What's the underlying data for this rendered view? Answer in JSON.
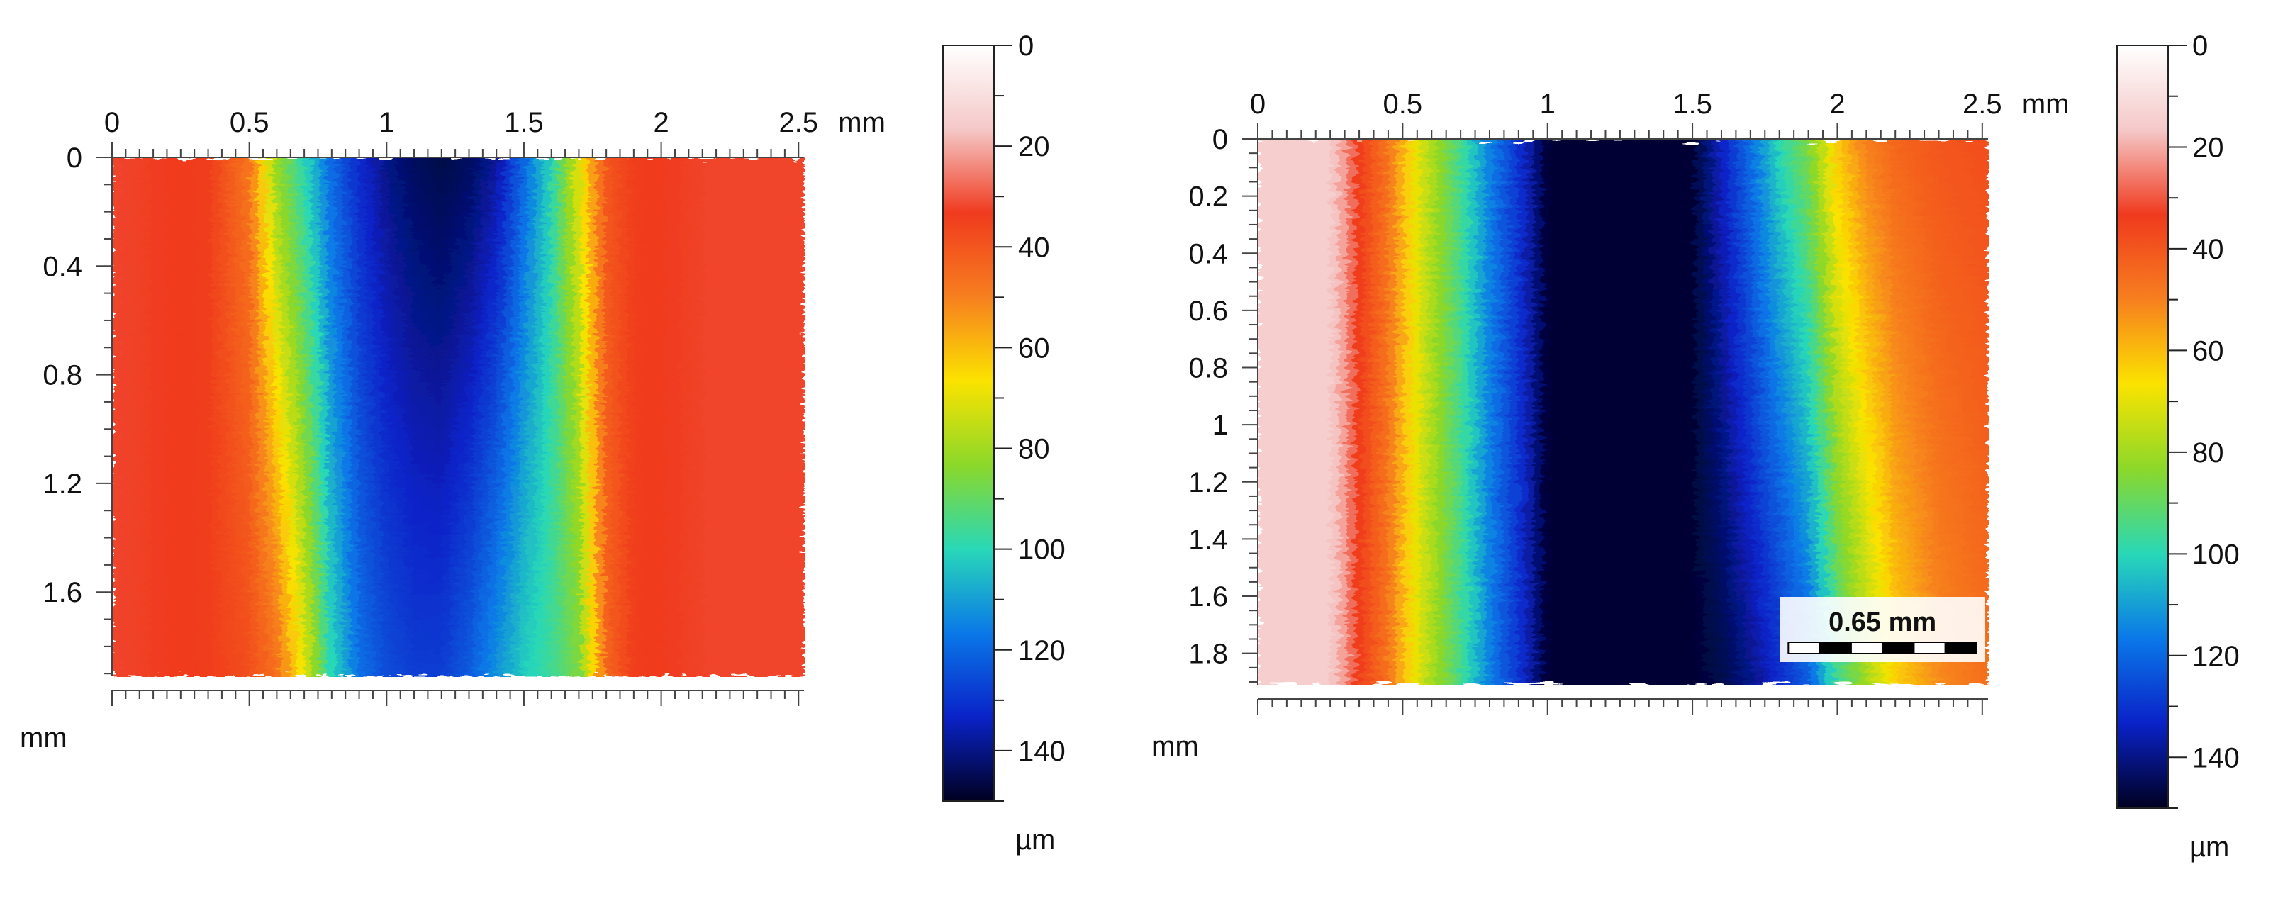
{
  "chart_data": [
    {
      "type": "heatmap",
      "title": "",
      "x_ticks": [
        0,
        0.5,
        1,
        1.5,
        2,
        2.5
      ],
      "x_tick_labels": [
        "0",
        "0.5",
        "1",
        "1.5",
        "2",
        "2.5"
      ],
      "x_unit": "mm",
      "x_range": [
        0,
        2.52
      ],
      "y_ticks": [
        0,
        0.4,
        0.8,
        1.2,
        1.6
      ],
      "y_tick_labels": [
        "0",
        "0.4",
        "0.8",
        "1.2",
        "1.6"
      ],
      "y_unit": "mm",
      "y_range": [
        0,
        1.91
      ],
      "colorbar": {
        "ticks": [
          0,
          20,
          40,
          60,
          80,
          100,
          120,
          140
        ],
        "tick_labels": [
          "0",
          "20",
          "40",
          "60",
          "80",
          "100",
          "120",
          "140"
        ],
        "range": [
          0,
          150
        ],
        "unit": "µm",
        "colormap": [
          "#ffffff",
          "#f5c8c8",
          "#f03a1e",
          "#f77f1f",
          "#fbe300",
          "#8bd82a",
          "#28d8b8",
          "#0a78e8",
          "#0a22c8",
          "#000020"
        ]
      },
      "depth_profile": {
        "x": [
          0,
          0.35,
          0.5,
          0.6,
          0.7,
          0.8,
          0.9,
          1.0,
          1.1,
          1.2,
          1.3,
          1.4,
          1.5,
          1.6,
          1.7,
          1.8,
          1.9,
          2.2,
          2.52
        ],
        "depth_top": [
          32,
          34,
          48,
          82,
          100,
          120,
          132,
          140,
          144,
          146,
          144,
          138,
          120,
          100,
          70,
          40,
          34,
          32,
          32
        ],
        "depth_bottom": [
          32,
          34,
          38,
          46,
          70,
          100,
          118,
          125,
          128,
          128,
          122,
          112,
          102,
          96,
          86,
          44,
          34,
          32,
          32
        ]
      }
    },
    {
      "type": "heatmap",
      "title": "",
      "x_ticks": [
        0,
        0.5,
        1,
        1.5,
        2,
        2.5
      ],
      "x_tick_labels": [
        "0",
        "0.5",
        "1",
        "1.5",
        "2",
        "2.5"
      ],
      "x_unit": "mm",
      "x_range": [
        0,
        2.52
      ],
      "y_ticks": [
        0,
        0.2,
        0.4,
        0.6,
        0.8,
        1,
        1.2,
        1.4,
        1.6,
        1.8
      ],
      "y_tick_labels": [
        "0",
        "0.2",
        "0.4",
        "0.6",
        "0.8",
        "1",
        "1.2",
        "1.4",
        "1.6",
        "1.8"
      ],
      "y_unit": "mm",
      "y_range": [
        0,
        1.91
      ],
      "colorbar": {
        "ticks": [
          0,
          20,
          40,
          60,
          80,
          100,
          120,
          140
        ],
        "tick_labels": [
          "0",
          "20",
          "40",
          "60",
          "80",
          "100",
          "120",
          "140"
        ],
        "range": [
          0,
          150
        ],
        "unit": "µm",
        "colormap": [
          "#ffffff",
          "#f5c8c8",
          "#f03a1e",
          "#f77f1f",
          "#fbe300",
          "#8bd82a",
          "#28d8b8",
          "#0a78e8",
          "#0a22c8",
          "#000020"
        ]
      },
      "depth_profile": {
        "x": [
          0,
          0.25,
          0.3,
          0.35,
          0.45,
          0.55,
          0.7,
          0.8,
          0.9,
          1.0,
          1.5,
          1.6,
          1.7,
          1.8,
          1.9,
          2.0,
          2.1,
          2.2,
          2.35,
          2.52
        ],
        "depth_top": [
          15,
          15,
          22,
          34,
          48,
          70,
          95,
          115,
          130,
          148,
          148,
          134,
          118,
          100,
          85,
          62,
          50,
          44,
          40,
          38
        ],
        "depth_bottom": [
          15,
          15,
          22,
          34,
          48,
          70,
          95,
          115,
          130,
          148,
          148,
          146,
          140,
          132,
          122,
          96,
          80,
          64,
          52,
          46
        ]
      },
      "scale_bar": {
        "label": "0.65 mm",
        "length": 0.65
      }
    }
  ]
}
